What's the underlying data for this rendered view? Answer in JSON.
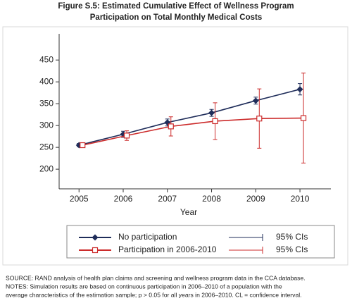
{
  "chart_data": {
    "type": "line",
    "title_lines": [
      "Figure S.5: Estimated Cumulative Effect of Wellness Program",
      "Participation on Total Monthly Medical Costs"
    ],
    "x_label": "Year",
    "x": [
      2005,
      2006,
      2007,
      2008,
      2009,
      2010
    ],
    "series": [
      {
        "name": "No participation",
        "color": "#1f2d5a",
        "marker": "diamond",
        "ci_label": "95% CIs",
        "values": [
          255,
          280,
          307,
          329,
          357,
          383
        ],
        "errors": [
          4,
          7,
          8,
          8,
          8,
          13
        ]
      },
      {
        "name": "Participation in 2006-2010",
        "color": "#cc2b2b",
        "marker": "square",
        "ci_label": "95% CIs",
        "values": [
          255,
          277,
          298,
          310,
          316,
          317
        ],
        "errors": [
          3,
          11,
          22,
          42,
          68,
          103
        ]
      }
    ],
    "xlim": [
      2004.55,
      2010.7
    ],
    "xticks": [
      2005,
      2006,
      2007,
      2008,
      2009,
      2010
    ],
    "ylim": [
      155,
      510
    ],
    "yticks": [
      200,
      250,
      300,
      350,
      400,
      450
    ],
    "grid": false,
    "footnotes": [
      "SOURCE: RAND analysis of health plan claims and screening and wellness program data in the CCA database.",
      "NOTES: Simulation results are based on continuous participation in 2006–2010 of a population with the",
      "average characteristics of the estimation sample; p > 0.05 for all years in 2006–2010. CL = confidence interval."
    ]
  }
}
